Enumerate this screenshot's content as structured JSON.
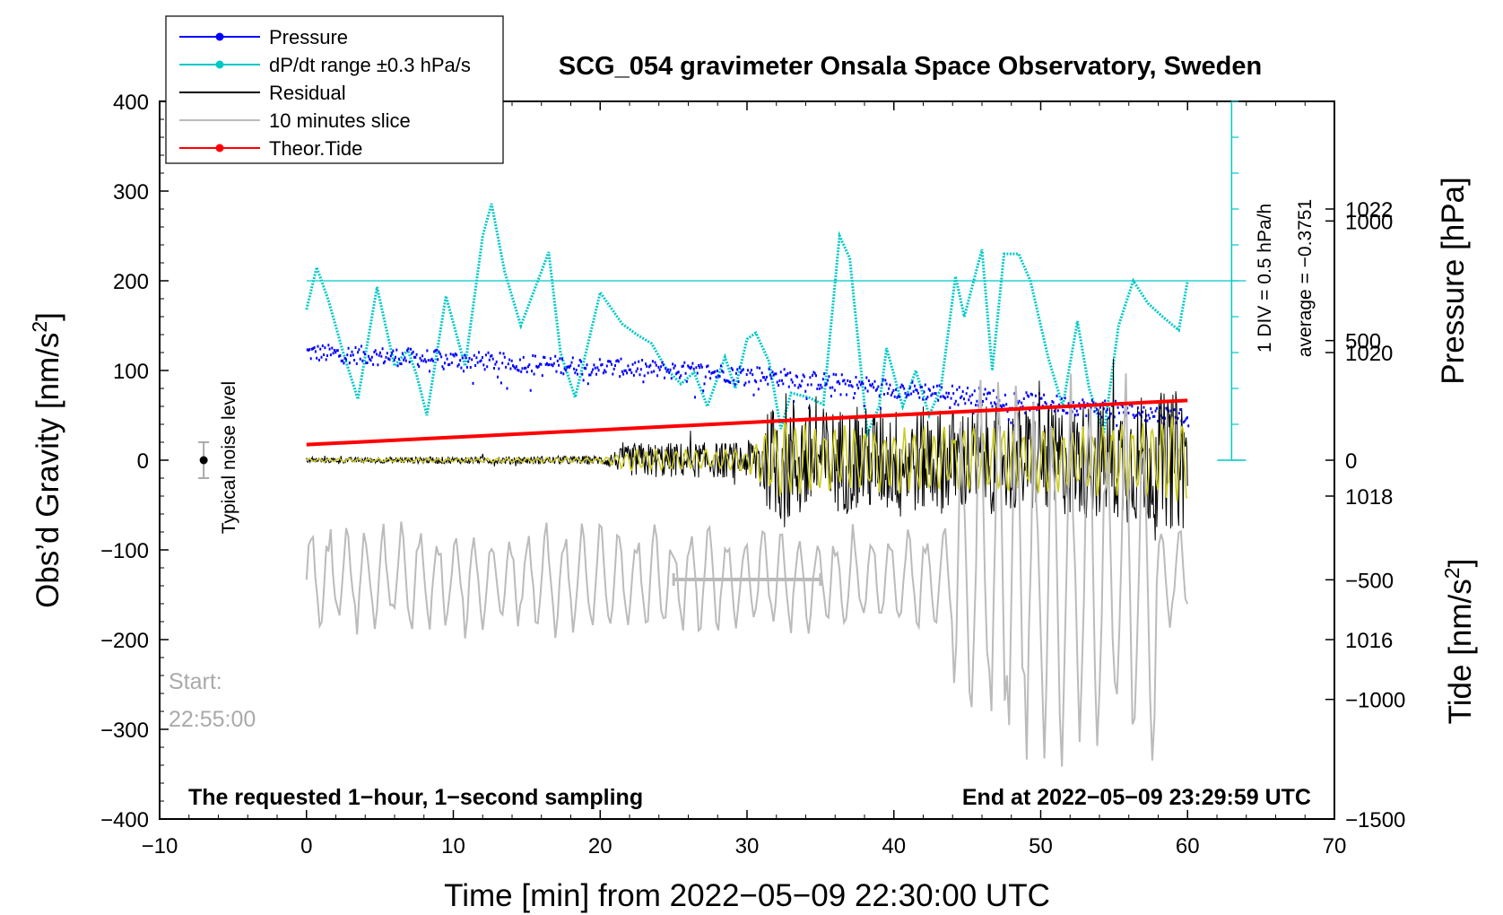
{
  "chart_data": {
    "type": "line",
    "title": "SCG_054 gravimeter Onsala Space Observatory, Sweden",
    "xlabel": "Time [min] from 2022−05−09 22:30:00 UTC",
    "ylabel_left": "Obs’d Gravity [nm/s",
    "ylabel_left_sup": "2",
    "ylabel_left_close": "]",
    "ylabel_right_pressure": "Pressure [hPa]",
    "ylabel_right_tide": "Tide [nm/s",
    "ylabel_right_tide_sup": "2",
    "ylabel_right_tide_close": "]",
    "xlim": [
      -10,
      70
    ],
    "ylim": [
      -400,
      400
    ],
    "pressure_range": [
      1013.5,
      1023.5
    ],
    "tide_range": [
      -1500,
      1500
    ],
    "x_ticks": [
      "−10",
      "0",
      "10",
      "20",
      "30",
      "40",
      "50",
      "60",
      "70"
    ],
    "x_tick_values": [
      -10,
      0,
      10,
      20,
      30,
      40,
      50,
      60,
      70
    ],
    "y_ticks": [
      "400",
      "300",
      "200",
      "100",
      "0",
      "−100",
      "−200",
      "−300",
      "−400"
    ],
    "y_tick_values": [
      400,
      300,
      200,
      100,
      0,
      -100,
      -200,
      -300,
      -400
    ],
    "pressure_ticks": [
      "1022",
      "1020",
      "1018",
      "1016"
    ],
    "pressure_tick_values": [
      1022,
      1020,
      1018,
      1016
    ],
    "tide_ticks": [
      "1000",
      "500",
      "0",
      "−500",
      "−1000",
      "−1500"
    ],
    "tide_tick_values": [
      1000,
      500,
      0,
      -500,
      -1000,
      -1500
    ],
    "legend": [
      {
        "label": "Pressure",
        "color": "#0000ff",
        "marker": true
      },
      {
        "label": "dP/dt range ±0.3 hPa/s",
        "color": "#00c8c8",
        "marker": true
      },
      {
        "label": "Residual",
        "color": "#000000",
        "marker": false
      },
      {
        "label": "10 minutes slice",
        "color": "#bbbbbb",
        "marker": false
      },
      {
        "label": "Theor.Tide",
        "color": "#ff0000",
        "marker": true
      }
    ],
    "series": [
      {
        "name": "Pressure",
        "units": "hPa",
        "x": [
          0,
          10,
          20,
          30,
          40,
          50,
          60
        ],
        "values": [
          1020.0,
          1019.9,
          1019.8,
          1019.7,
          1019.5,
          1019.3,
          1019.1
        ]
      },
      {
        "name": "dP/dt",
        "units": "nm/s2 scale",
        "x": [
          0,
          0.7,
          1.5,
          2.5,
          3.5,
          4.8,
          6,
          6.9,
          7.5,
          8.2,
          9.5,
          10.8,
          12,
          12.6,
          13.5,
          14.6,
          16.5,
          17.3,
          18.3,
          20,
          21.5,
          22.5,
          23.5,
          24.5,
          25.5,
          26.4,
          27.3,
          28.5,
          29.2,
          30,
          30.6,
          31.5,
          32.3,
          33,
          34.2,
          35.2,
          36.3,
          37,
          38.2,
          39,
          39.5,
          40.6,
          41.5,
          42.4,
          43.2,
          44.2,
          44.8,
          46,
          46.7,
          47.5,
          48.5,
          49.3,
          50.5,
          51.5,
          52.5,
          53.3,
          54.3,
          55.3,
          56.3,
          57.3,
          58.3,
          59.4,
          60
        ],
        "values": [
          168,
          215,
          178,
          120,
          68,
          193,
          105,
          123,
          95,
          50,
          183,
          105,
          250,
          286,
          210,
          150,
          232,
          120,
          70,
          187,
          152,
          140,
          130,
          102,
          85,
          98,
          60,
          115,
          80,
          135,
          142,
          110,
          35,
          75,
          70,
          62,
          250,
          225,
          30,
          60,
          125,
          60,
          100,
          50,
          80,
          205,
          160,
          235,
          100,
          230,
          230,
          200,
          115,
          60,
          155,
          80,
          30,
          150,
          200,
          175,
          160,
          145,
          200
        ]
      },
      {
        "name": "Residual",
        "units": "nm/s2",
        "envelope_x": [
          0,
          20,
          22.5,
          30,
          32.5,
          35,
          45,
          50,
          55,
          60
        ],
        "envelope": [
          3,
          5,
          20,
          20,
          80,
          60,
          60,
          60,
          70,
          80
        ]
      },
      {
        "name": "10 minutes slice",
        "units": "nm/s2",
        "x_range": [
          25,
          35
        ],
        "y": -133
      },
      {
        "name": "Theor.Tide",
        "units": "nm/s2",
        "x": [
          0,
          60
        ],
        "values": [
          65,
          250
        ]
      }
    ],
    "noise_level": {
      "x": -7,
      "y": 0,
      "err": 20,
      "label": "Typical noise level"
    },
    "pressure_scale": {
      "div_label": "1 DIV = 0.5 hPa/h",
      "average_label": "average = −0.3751",
      "x": 63,
      "y_top": 400,
      "y_bottom": 0,
      "midline": 200
    },
    "annotations": {
      "start_label": "Start:",
      "start_time": "22:55:00",
      "requested": "The requested 1−hour, 1−second sampling",
      "end": "End at 2022−05−09 23:29:59 UTC"
    }
  }
}
